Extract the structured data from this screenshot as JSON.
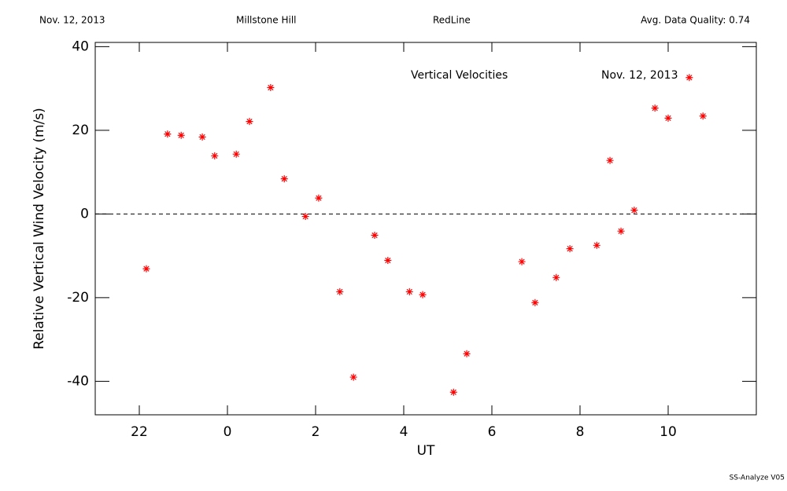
{
  "chart_data": {
    "type": "scatter",
    "header": [
      "Nov. 12, 2013",
      "Millstone Hill",
      "RedLine",
      "Avg. Data Quality: 0.74"
    ],
    "annotations": [
      "Vertical Velocities",
      "Nov. 12, 2013"
    ],
    "footer": "SS-Analyze V05",
    "x_label": "UT",
    "y_label": "Relative Vertical Wind Velocity (m/s)",
    "color": "#ff0000",
    "reference_line": 0,
    "xlim": [
      -3,
      12
    ],
    "xticks": [
      {
        "value": -2,
        "label": "22"
      },
      0,
      2,
      4,
      6,
      8,
      10
    ],
    "ylim": [
      -48,
      41
    ],
    "yticks": [
      -40,
      -20,
      0,
      20,
      40
    ],
    "x": [
      -1.84,
      -1.36,
      -1.05,
      -0.57,
      -0.29,
      0.2,
      0.5,
      0.98,
      1.29,
      1.77,
      2.07,
      2.55,
      2.86,
      3.34,
      3.64,
      4.13,
      4.43,
      5.13,
      5.43,
      6.68,
      6.98,
      7.46,
      7.77,
      8.38,
      8.68,
      8.93,
      9.23,
      9.7,
      10.0,
      10.48,
      10.79
    ],
    "values": [
      -13.1,
      19.1,
      18.8,
      18.4,
      13.9,
      14.3,
      22.1,
      30.2,
      8.4,
      -0.6,
      3.8,
      -18.6,
      -39.0,
      -5.1,
      -11.1,
      -18.6,
      -19.3,
      -42.6,
      -33.4,
      -11.4,
      -21.2,
      -15.2,
      -8.3,
      -7.5,
      12.8,
      -4.1,
      0.9,
      25.3,
      22.9,
      32.6,
      23.4
    ]
  }
}
